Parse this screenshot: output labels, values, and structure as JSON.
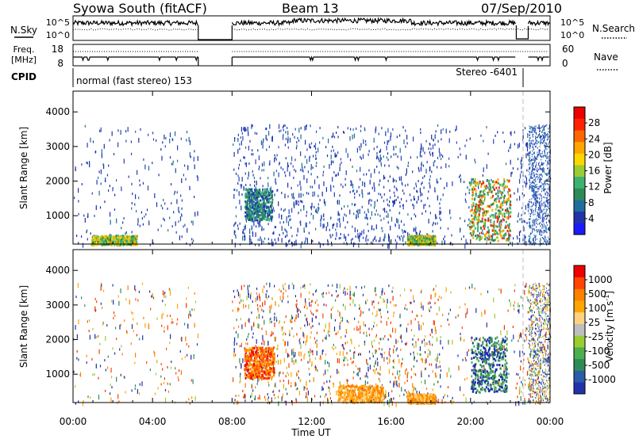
{
  "header": {
    "station": "Syowa South (fitACF)",
    "beam": "Beam 13",
    "date": "07/Sep/2010"
  },
  "noise_panel": {
    "left_label": "N.Sky",
    "right_label": "N.Search",
    "right_ticks": [
      "10^5",
      "10^0"
    ],
    "left_ticks": [
      "10^5",
      "10^0"
    ]
  },
  "freq_panel": {
    "left_label_line1": "Freq.",
    "left_label_line2": "[MHz]",
    "left_ticks": [
      "18",
      "8"
    ],
    "right_label": "Nave",
    "right_ticks": [
      "60",
      "0"
    ]
  },
  "cpid": {
    "label": "CPID",
    "mode_left": "normal (fast stereo) 153",
    "mode_right": "Stereo -6401"
  },
  "time_axis": {
    "label": "Time UT",
    "ticks": [
      "00:00",
      "04:00",
      "08:00",
      "12:00",
      "16:00",
      "20:00",
      "00:00"
    ]
  },
  "colors": {
    "frame": "#000000",
    "scatter_blue": "#1b2fa8",
    "dashed_line": "#bbbbbb"
  },
  "chart_data": [
    {
      "type": "heatmap",
      "name": "power",
      "ylabel": "Slant Range [km]",
      "yticks": [
        "4000",
        "3000",
        "2000",
        "1000"
      ],
      "ylim": [
        180,
        4600
      ],
      "xlim_hours": [
        0,
        24
      ],
      "colorbar": {
        "label": "Power [dB]",
        "ticks": [
          "28",
          "24",
          "20",
          "16",
          "12",
          "8",
          "4"
        ],
        "colors": [
          "#1a1aff",
          "#2233aa",
          "#1f6e9a",
          "#2e8b57",
          "#3cb371",
          "#9acd32",
          "#ffd700",
          "#ffa500",
          "#ff6600",
          "#ff2200",
          "#ee0000"
        ]
      },
      "features": [
        {
          "t0": 0.9,
          "t1": 3.2,
          "r0": 180,
          "r1": 450,
          "color": "green-yellow"
        },
        {
          "t0": 8.6,
          "t1": 10.0,
          "r0": 900,
          "r1": 1800,
          "color": "green-teal"
        },
        {
          "t0": 16.8,
          "t1": 18.2,
          "r0": 180,
          "r1": 450,
          "color": "green-yellow"
        },
        {
          "t0": 19.9,
          "t1": 22.0,
          "r0": 300,
          "r1": 2100,
          "color": "green-orange"
        }
      ]
    },
    {
      "type": "heatmap",
      "name": "velocity",
      "ylabel": "Slant Range [km]",
      "yticks": [
        "4000",
        "3000",
        "2000",
        "1000"
      ],
      "ylim": [
        180,
        4600
      ],
      "xlim_hours": [
        0,
        24
      ],
      "colorbar": {
        "label": "Velocity [m s^-1]",
        "ticks": [
          "1000",
          "500",
          "100",
          "25",
          "-25",
          "-100",
          "-500",
          "-1000"
        ],
        "colors": [
          "#2233aa",
          "#2a5caa",
          "#2e8b57",
          "#4caf50",
          "#9acd32",
          "#bebebe",
          "#ffd27f",
          "#ffa500",
          "#ff7f00",
          "#ff4500",
          "#ee0000"
        ]
      },
      "features": [
        {
          "t0": 8.6,
          "t1": 10.1,
          "r0": 900,
          "r1": 1800,
          "color": "orange-red"
        },
        {
          "t0": 13.3,
          "t1": 15.6,
          "r0": 200,
          "r1": 700,
          "color": "orange"
        },
        {
          "t0": 16.8,
          "t1": 18.2,
          "r0": 180,
          "r1": 450,
          "color": "orange"
        },
        {
          "t0": 20.0,
          "t1": 21.8,
          "r0": 500,
          "r1": 2100,
          "color": "blue-green"
        }
      ]
    }
  ]
}
